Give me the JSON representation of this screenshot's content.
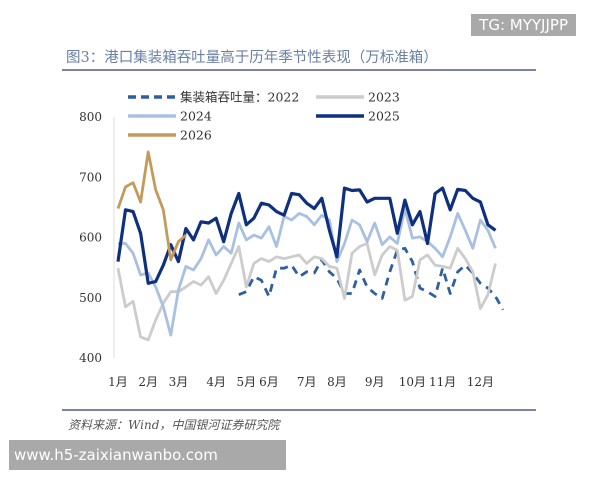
{
  "title": "图3：港口集装箱吞吐量高于历年季节性表现（万标准箱）",
  "source": "资料来源：Wind，中国银河证券研究院",
  "watermarks": {
    "top": "TG: MYYJJPP",
    "bottom": "www.h5-zaixianwanbo.com"
  },
  "chart_data": {
    "type": "line",
    "title": "图3：港口集装箱吞吐量高于历年季节性表现（万标准箱）",
    "ylim": [
      400,
      800
    ],
    "yticks": [
      400,
      500,
      600,
      700,
      800
    ],
    "xlim": [
      1,
      52
    ],
    "xticks": [
      {
        "label": "1月",
        "week": 1
      },
      {
        "label": "2月",
        "week": 5
      },
      {
        "label": "3月",
        "week": 9
      },
      {
        "label": "4月",
        "week": 14
      },
      {
        "label": "5月",
        "week": 18
      },
      {
        "label": "6月",
        "week": 21
      },
      {
        "label": "7月",
        "week": 26
      },
      {
        "label": "8月",
        "week": 30
      },
      {
        "label": "9月",
        "week": 35
      },
      {
        "label": "10月",
        "week": 40
      },
      {
        "label": "11月",
        "week": 44
      },
      {
        "label": "12月",
        "week": 49
      }
    ],
    "grid": false,
    "legend_position": "top",
    "series": [
      {
        "name": "集装箱吞吐量：2022",
        "color": "#2f5f9e",
        "dashed": true,
        "start_week": 17,
        "values": [
          505,
          510,
          535,
          529,
          502,
          549,
          549,
          554,
          535,
          543,
          541,
          563,
          543,
          532,
          507,
          507,
          546,
          518,
          507,
          499,
          543,
          579,
          582,
          560,
          516,
          510,
          502,
          549,
          507,
          543,
          554,
          541,
          524,
          516,
          502,
          480
        ]
      },
      {
        "name": "2023",
        "color": "#cccccc",
        "dashed": false,
        "start_week": 1,
        "values": [
          549,
          485,
          494,
          435,
          430,
          463,
          491,
          510,
          510,
          518,
          527,
          521,
          535,
          507,
          529,
          557,
          585,
          518,
          557,
          565,
          560,
          568,
          565,
          568,
          571,
          557,
          568,
          565,
          552,
          549,
          499,
          574,
          585,
          590,
          538,
          571,
          585,
          579,
          496,
          502,
          563,
          571,
          554,
          552,
          549,
          582,
          565,
          543,
          482,
          505,
          557
        ]
      },
      {
        "name": "2024",
        "color": "#a9c0e0",
        "dashed": false,
        "start_week": 1,
        "values": [
          590,
          590,
          574,
          538,
          541,
          518,
          485,
          438,
          513,
          552,
          546,
          565,
          596,
          571,
          585,
          574,
          624,
          596,
          604,
          599,
          618,
          585,
          635,
          629,
          640,
          635,
          621,
          637,
          629,
          560,
          590,
          629,
          621,
          593,
          624,
          588,
          601,
          590,
          648,
          599,
          601,
          593,
          582,
          568,
          601,
          640,
          612,
          582,
          629,
          612,
          582
        ]
      },
      {
        "name": "2025",
        "color": "#0f2f7f",
        "dashed": false,
        "start_week": 1,
        "values": [
          560,
          646,
          643,
          607,
          524,
          527,
          554,
          588,
          560,
          615,
          596,
          626,
          624,
          632,
          593,
          640,
          673,
          621,
          632,
          657,
          654,
          643,
          637,
          673,
          671,
          657,
          648,
          665,
          612,
          568,
          682,
          678,
          679,
          659,
          665,
          665,
          665,
          607,
          662,
          621,
          643,
          590,
          673,
          682,
          646,
          680,
          678,
          665,
          659,
          621,
          612
        ]
      },
      {
        "name": "2026",
        "color": "#c49a5c",
        "dashed": false,
        "start_week": 1,
        "values": [
          648,
          684,
          691,
          659,
          742,
          679,
          646,
          563,
          593,
          604
        ]
      }
    ]
  }
}
